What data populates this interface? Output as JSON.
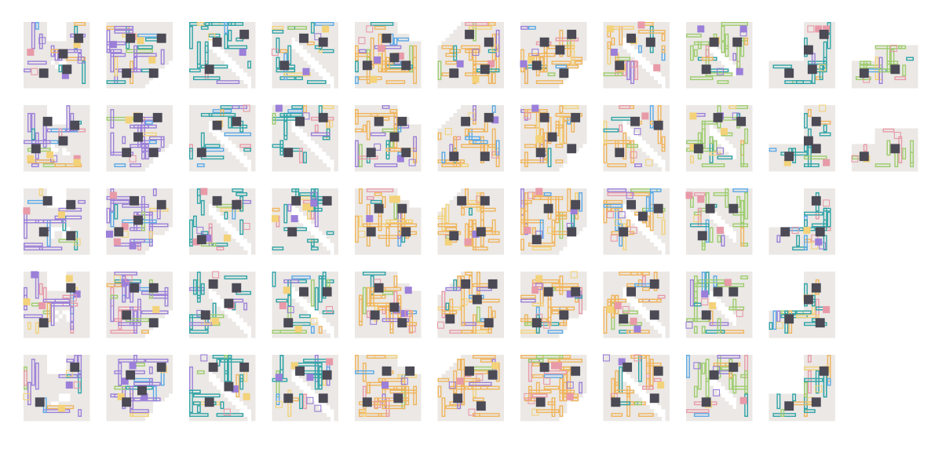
{
  "colors": {
    "background": "#ffffff",
    "floor": "#ebe8e5",
    "core": "#4b4a55",
    "conveyor_teal": "#2ea3a6",
    "conveyor_green": "#9ccc6b",
    "conveyor_orange": "#f0b45a",
    "conveyor_blue": "#5aa9e6",
    "machine_purple": "#9b7fd9",
    "machine_pink": "#e89aa8",
    "machine_yellow": "#f3d27a"
  },
  "board": {
    "rows": 5,
    "columns": 11,
    "tiles_per_row": [
      11,
      11,
      10,
      10,
      10
    ]
  },
  "columns": [
    {
      "blocked_shape": "notch-top",
      "dominant": "machine_purple",
      "density": 0.35
    },
    {
      "blocked_shape": "corner-br",
      "dominant": "machine_purple",
      "density": 0.4
    },
    {
      "blocked_shape": "diagonal",
      "dominant": "conveyor_teal",
      "density": 0.45
    },
    {
      "blocked_shape": "diagonal",
      "dominant": "conveyor_teal",
      "density": 0.5
    },
    {
      "blocked_shape": "corner-tr",
      "dominant": "conveyor_orange",
      "density": 0.55
    },
    {
      "blocked_shape": "corner-tl",
      "dominant": "conveyor_orange",
      "density": 0.5
    },
    {
      "blocked_shape": "corner-br",
      "dominant": "conveyor_orange",
      "density": 0.55
    },
    {
      "blocked_shape": "diagonal",
      "dominant": "conveyor_orange",
      "density": 0.5
    },
    {
      "blocked_shape": "diagonal-small",
      "dominant": "conveyor_green",
      "density": 0.55
    },
    {
      "blocked_shape": "l-shape",
      "dominant": "conveyor_teal",
      "density": 0.45
    },
    {
      "blocked_shape": "l-shape-wide",
      "dominant": "conveyor_green",
      "density": 0.4
    }
  ]
}
